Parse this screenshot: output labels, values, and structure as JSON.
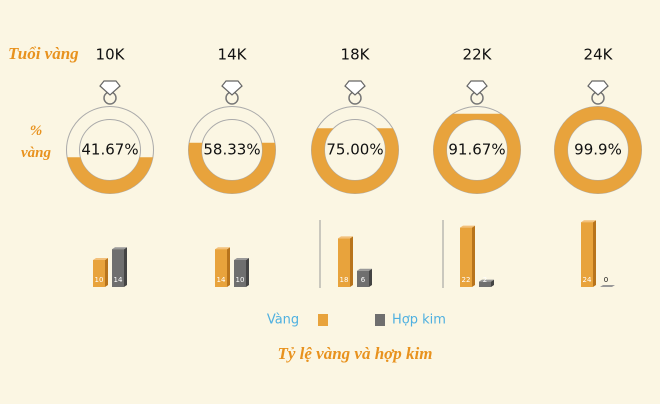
{
  "labels": {
    "karat_row": "Tuổi vàng",
    "percent_row": "% vàng"
  },
  "chart_data": [
    {
      "type": "ring",
      "categories": [
        "10K",
        "14K",
        "18K",
        "22K",
        "24K"
      ],
      "values": [
        41.67,
        58.33,
        75.0,
        91.67,
        99.9
      ],
      "value_labels": [
        "41.67%",
        "58.33%",
        "75.00%",
        "91.67%",
        "99.9%"
      ],
      "ylim": [
        0,
        100
      ],
      "color": "#e8a33c"
    },
    {
      "type": "bar",
      "title": "Tỷ lệ vàng và hợp kim",
      "series": [
        {
          "name": "Vàng",
          "color": "#e8a33c",
          "values": [
            10,
            14,
            18,
            22,
            24
          ]
        },
        {
          "name": "Hợp kim",
          "color": "#6f6f6f",
          "values": [
            14,
            10,
            6,
            2,
            0
          ]
        }
      ]
    }
  ]
}
